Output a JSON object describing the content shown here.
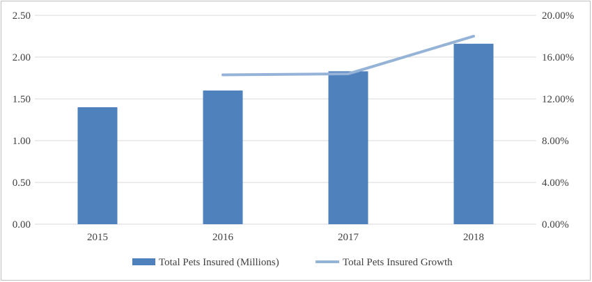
{
  "chart_data": {
    "type": "bar",
    "categories": [
      "2015",
      "2016",
      "2017",
      "2018"
    ],
    "series": [
      {
        "name": "Total Pets Insured (Millions)",
        "type": "bar",
        "axis": "left",
        "values": [
          1.4,
          1.6,
          1.83,
          2.16
        ],
        "color": "#4f81bd"
      },
      {
        "name": "Total Pets Insured Growth",
        "type": "line",
        "axis": "right",
        "values": [
          null,
          14.3,
          14.4,
          18.0
        ],
        "color": "#95b3d7"
      }
    ],
    "y_left": {
      "range": [
        0,
        2.5
      ],
      "ticks": [
        "0.00",
        "0.50",
        "1.00",
        "1.50",
        "2.00",
        "2.50"
      ]
    },
    "y_right": {
      "range": [
        0,
        20
      ],
      "ticks": [
        "0.00%",
        "4.00%",
        "8.00%",
        "12.00%",
        "16.00%",
        "20.00%"
      ]
    },
    "grid": true,
    "legend_position": "bottom"
  }
}
